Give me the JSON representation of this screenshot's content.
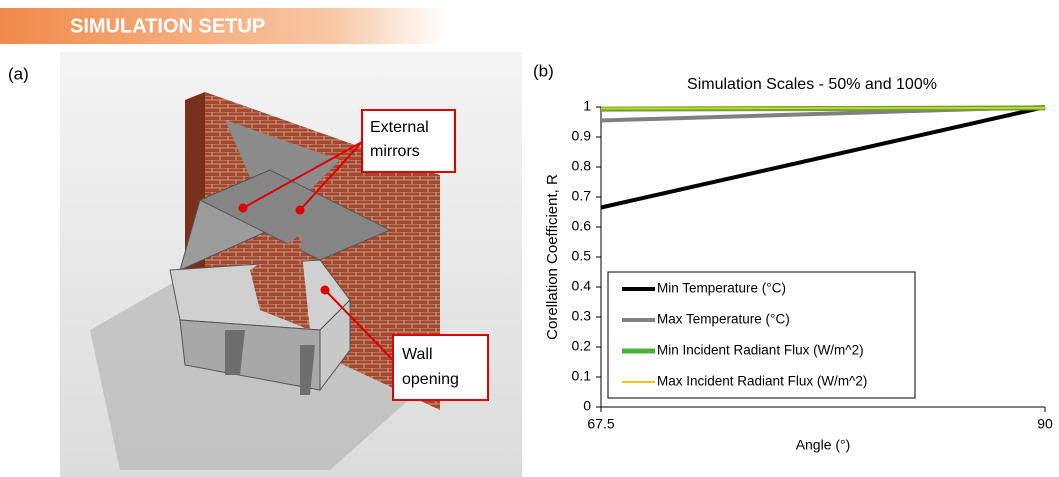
{
  "header": {
    "title": "SIMULATION SETUP"
  },
  "panel_labels": [
    "(a)",
    "(b)"
  ],
  "illustration": {
    "callouts": [
      "External mirrors",
      "Wall opening"
    ]
  },
  "chart_data": {
    "type": "line",
    "title": "Simulation Scales - 50% and 100%",
    "x_label": "Angle (°)",
    "y_label": "Corellation Coefficient, R",
    "x": [
      67.5,
      90
    ],
    "xlim": [
      67.5,
      90
    ],
    "xticks": [
      67.5,
      90
    ],
    "ylim": [
      0,
      1
    ],
    "yticks": [
      0,
      0.1,
      0.2,
      0.3,
      0.4,
      0.5,
      0.6,
      0.7,
      0.8,
      0.9,
      1
    ],
    "grid": false,
    "legend": "lower-left",
    "series": [
      {
        "name": "Min Temperature (°C)",
        "color": "#000000",
        "line_width": 4,
        "values": [
          0.665,
          1.0
        ]
      },
      {
        "name": "Max Temperature (°C)",
        "color": "#808080",
        "line_width": 4,
        "values": [
          0.955,
          1.0
        ]
      },
      {
        "name": "Min Incident Radiant Flux (W/m^2)",
        "color": "#4caf3a",
        "line_width": 5,
        "values": [
          0.993,
          0.997
        ]
      },
      {
        "name": "Max Incident Radiant Flux (W/m^2)",
        "color": "#f2c21b",
        "line_width": 2,
        "values": [
          0.995,
          0.997
        ]
      }
    ]
  }
}
